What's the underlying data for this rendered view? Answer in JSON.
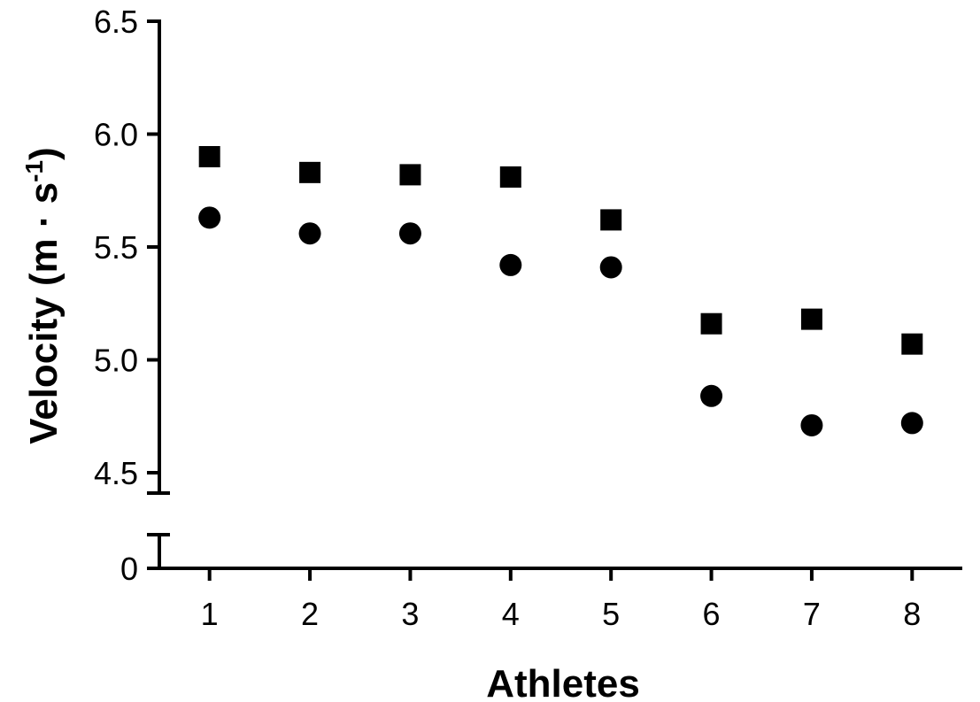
{
  "chart_data": {
    "type": "scatter",
    "title": "",
    "xlabel": "Athletes",
    "ylabel_main": "Velocity (m · s",
    "ylabel_sup": "-1",
    "ylabel_close": ")",
    "x": [
      1,
      2,
      3,
      4,
      5,
      6,
      7,
      8
    ],
    "xlim": [
      0.5,
      8.5
    ],
    "xticks": [
      "1",
      "2",
      "3",
      "4",
      "5",
      "6",
      "7",
      "8"
    ],
    "ylim": [
      4.5,
      6.5
    ],
    "yticks": [
      "4.5",
      "5.0",
      "5.5",
      "6.0",
      "6.5"
    ],
    "y_break_tick": "0",
    "y_axis_broken": true,
    "grid": false,
    "series": [
      {
        "marker": "square",
        "color": "#000000",
        "values": [
          5.9,
          5.83,
          5.82,
          5.81,
          5.62,
          5.16,
          5.18,
          5.07
        ]
      },
      {
        "marker": "circle",
        "color": "#000000",
        "values": [
          5.63,
          5.56,
          5.56,
          5.42,
          5.41,
          4.84,
          4.71,
          4.72
        ]
      }
    ]
  }
}
